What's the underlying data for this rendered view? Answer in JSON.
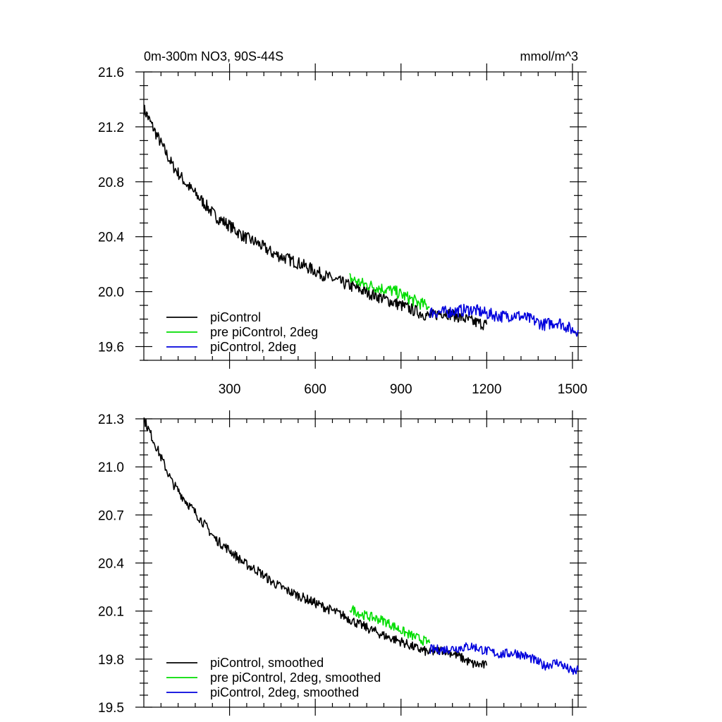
{
  "chart_data": [
    {
      "type": "line",
      "title": "0m-300m NO3, 90S-44S",
      "units": "mmol/m^3",
      "xlim": [
        0,
        1520
      ],
      "ylim": [
        19.5,
        21.6
      ],
      "xticks": [
        300,
        600,
        900,
        1200,
        1500
      ],
      "yticks": [
        19.6,
        20.0,
        20.4,
        20.8,
        21.2,
        21.6
      ],
      "ytick_labels": [
        "19.6",
        "20.0",
        "20.4",
        "20.8",
        "21.2",
        "21.6"
      ],
      "legend_position": "bottom-left",
      "series": [
        {
          "name": "piControl",
          "color": "#000000",
          "x": [
            0,
            50,
            100,
            150,
            200,
            250,
            300,
            350,
            400,
            450,
            500,
            550,
            600,
            650,
            700,
            750,
            800,
            850,
            900,
            950,
            1000,
            1050,
            1100,
            1150,
            1200
          ],
          "y": [
            21.33,
            21.12,
            20.92,
            20.78,
            20.67,
            20.55,
            20.48,
            20.4,
            20.35,
            20.28,
            20.24,
            20.2,
            20.15,
            20.1,
            20.06,
            20.02,
            19.98,
            19.94,
            19.9,
            19.86,
            19.82,
            19.85,
            19.82,
            19.78,
            19.76
          ]
        },
        {
          "name": "pre piControl, 2deg",
          "color": "#00dd00",
          "x": [
            720,
            760,
            800,
            840,
            880,
            920,
            960,
            1000
          ],
          "y": [
            20.1,
            20.06,
            20.04,
            20.02,
            20.0,
            19.96,
            19.92,
            19.89
          ]
        },
        {
          "name": "piControl, 2deg",
          "color": "#0000dd",
          "x": [
            1000,
            1050,
            1100,
            1150,
            1200,
            1250,
            1300,
            1350,
            1400,
            1450,
            1500,
            1520
          ],
          "y": [
            19.85,
            19.85,
            19.86,
            19.87,
            19.84,
            19.82,
            19.83,
            19.8,
            19.76,
            19.78,
            19.72,
            19.72
          ]
        }
      ]
    },
    {
      "type": "line",
      "xlim": [
        0,
        1520
      ],
      "ylim": [
        19.5,
        21.3
      ],
      "xticks": [
        300,
        600,
        900,
        1200,
        1500
      ],
      "yticks": [
        19.5,
        19.8,
        20.1,
        20.4,
        20.7,
        21.0,
        21.3
      ],
      "ytick_labels": [
        "19.5",
        "19.8",
        "20.1",
        "20.4",
        "20.7",
        "21.0",
        "21.3"
      ],
      "legend_position": "bottom-left",
      "series": [
        {
          "name": "piControl, smoothed",
          "color": "#000000",
          "x": [
            0,
            50,
            100,
            150,
            200,
            250,
            300,
            350,
            400,
            450,
            500,
            550,
            600,
            650,
            700,
            750,
            800,
            850,
            900,
            950,
            1000,
            1050,
            1100,
            1150,
            1200
          ],
          "y": [
            21.3,
            21.1,
            20.9,
            20.78,
            20.67,
            20.55,
            20.48,
            20.4,
            20.35,
            20.28,
            20.23,
            20.19,
            20.15,
            20.11,
            20.07,
            20.02,
            19.98,
            19.94,
            19.91,
            19.87,
            19.84,
            19.86,
            19.82,
            19.77,
            19.76
          ]
        },
        {
          "name": "pre piControl, 2deg, smoothed",
          "color": "#00dd00",
          "x": [
            720,
            760,
            800,
            840,
            880,
            920,
            960,
            1000
          ],
          "y": [
            20.12,
            20.08,
            20.06,
            20.04,
            20.0,
            19.96,
            19.93,
            19.9
          ]
        },
        {
          "name": "piControl, 2deg, smoothed",
          "color": "#0000dd",
          "x": [
            1000,
            1050,
            1100,
            1150,
            1200,
            1250,
            1300,
            1350,
            1400,
            1450,
            1500,
            1520
          ],
          "y": [
            19.86,
            19.86,
            19.87,
            19.88,
            19.85,
            19.83,
            19.84,
            19.81,
            19.76,
            19.78,
            19.72,
            19.73
          ]
        }
      ]
    }
  ]
}
